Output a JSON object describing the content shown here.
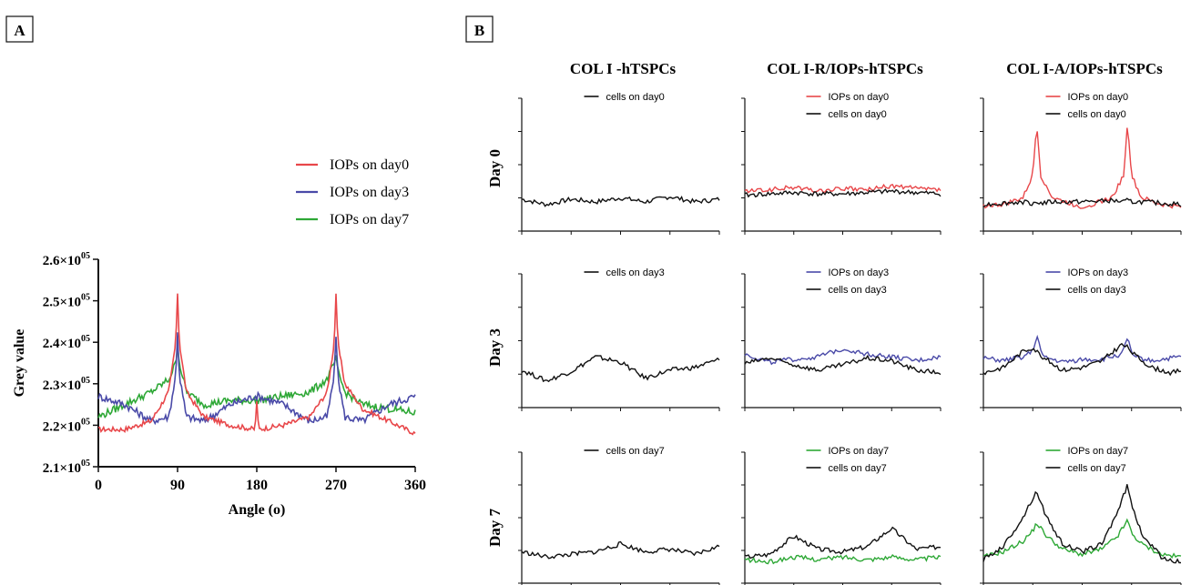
{
  "panel_a": {
    "letter": "A",
    "colors": {
      "day0": "#e8474a",
      "day3": "#4a4aa8",
      "day7": "#2ea836"
    }
  },
  "panel_b": {
    "letter": "B",
    "column_titles": [
      "COL I -hTSPCs",
      "COL I-R/IOPs-hTSPCs",
      "COL I-A/IOPs-hTSPCs"
    ],
    "row_titles": [
      "Day 0",
      "Day 3",
      "Day 7"
    ],
    "colors": {
      "cells": "#111111",
      "day0": "#e8474a",
      "day3": "#4a4aa8",
      "day7": "#2ea836"
    }
  },
  "chart_data": [
    {
      "type": "line",
      "panel": "A",
      "xlabel": "Angle (o)",
      "ylabel": "Grey value",
      "xlim": [
        0,
        360
      ],
      "ylim": [
        210000,
        260000
      ],
      "xticks": [
        "0",
        "90",
        "180",
        "270",
        "360"
      ],
      "yticks": [
        {
          "mant": "2.1",
          "exp": "05"
        },
        {
          "mant": "2.2",
          "exp": "05"
        },
        {
          "mant": "2.3",
          "exp": "05"
        },
        {
          "mant": "2.4",
          "exp": "05"
        },
        {
          "mant": "2.5",
          "exp": "05"
        },
        {
          "mant": "2.6",
          "exp": "05"
        }
      ],
      "legend": [
        "IOPs on day0",
        "IOPs on day3",
        "IOPs on day7"
      ],
      "legend_position": "top-right",
      "x": [
        0,
        30,
        60,
        80,
        88,
        90,
        92,
        100,
        120,
        150,
        178,
        180,
        182,
        210,
        240,
        260,
        268,
        270,
        272,
        280,
        300,
        330,
        360
      ],
      "series": [
        {
          "name": "IOPs on day0",
          "values": [
            219000,
            219000,
            221000,
            228000,
            240000,
            252000,
            240000,
            228000,
            222000,
            220000,
            219000,
            226000,
            219000,
            220000,
            222000,
            228000,
            240000,
            252000,
            240000,
            230000,
            224000,
            221000,
            218000
          ]
        },
        {
          "name": "IOPs on day3",
          "values": [
            227000,
            225000,
            221000,
            222000,
            232000,
            243000,
            232000,
            222000,
            221000,
            225000,
            227000,
            227000,
            227000,
            225000,
            221000,
            222000,
            232000,
            242000,
            232000,
            222000,
            221000,
            225000,
            227000
          ]
        },
        {
          "name": "IOPs on day7",
          "values": [
            222000,
            225000,
            228000,
            231000,
            235000,
            240000,
            235000,
            228000,
            225000,
            226000,
            226000,
            226000,
            226000,
            227000,
            228000,
            231000,
            235000,
            236000,
            233000,
            228000,
            225000,
            224000,
            223000
          ]
        }
      ]
    },
    {
      "type": "line",
      "panel": "B",
      "grid": [
        [
          {
            "legend": [
              "cells on day0"
            ],
            "ylim": [
              0,
              1
            ],
            "x": [
              0,
              0.125,
              0.25,
              0.375,
              0.5,
              0.625,
              0.75,
              0.875,
              1
            ],
            "series": [
              {
                "name": "cells on day0",
                "values": [
                  0.24,
                  0.2,
                  0.24,
                  0.22,
                  0.25,
                  0.22,
                  0.26,
                  0.22,
                  0.24
                ]
              }
            ]
          },
          {
            "legend": [
              "IOPs on day0",
              "cells on day0"
            ],
            "ylim": [
              0,
              1
            ],
            "x": [
              0,
              0.125,
              0.25,
              0.375,
              0.5,
              0.625,
              0.75,
              0.875,
              1
            ],
            "series": [
              {
                "name": "IOPs on day0",
                "values": [
                  0.3,
                  0.31,
                  0.33,
                  0.3,
                  0.32,
                  0.31,
                  0.34,
                  0.32,
                  0.31
                ]
              },
              {
                "name": "cells on day0",
                "values": [
                  0.27,
                  0.28,
                  0.29,
                  0.28,
                  0.28,
                  0.29,
                  0.3,
                  0.29,
                  0.28
                ]
              }
            ]
          },
          {
            "legend": [
              "IOPs on day0",
              "cells on day0"
            ],
            "ylim": [
              0,
              1
            ],
            "x": [
              0,
              0.1,
              0.2,
              0.25,
              0.27,
              0.29,
              0.35,
              0.5,
              0.65,
              0.71,
              0.73,
              0.75,
              0.8,
              0.9,
              1
            ],
            "series": [
              {
                "name": "IOPs on day0",
                "values": [
                  0.19,
                  0.2,
                  0.25,
                  0.42,
                  0.82,
                  0.42,
                  0.25,
                  0.18,
                  0.25,
                  0.42,
                  0.82,
                  0.42,
                  0.25,
                  0.2,
                  0.18
                ]
              },
              {
                "name": "cells on day0",
                "values": [
                  0.2,
                  0.21,
                  0.22,
                  0.21,
                  0.22,
                  0.21,
                  0.22,
                  0.22,
                  0.23,
                  0.22,
                  0.23,
                  0.22,
                  0.22,
                  0.21,
                  0.2
                ]
              }
            ]
          }
        ],
        [
          {
            "legend": [
              "cells on day3"
            ],
            "ylim": [
              0,
              1
            ],
            "x": [
              0,
              0.125,
              0.25,
              0.375,
              0.5,
              0.625,
              0.75,
              0.875,
              1
            ],
            "series": [
              {
                "name": "cells on day3",
                "values": [
                  0.28,
                  0.2,
                  0.27,
                  0.38,
                  0.34,
                  0.22,
                  0.28,
                  0.3,
                  0.36
                ]
              }
            ]
          },
          {
            "legend": [
              "IOPs on day3",
              "cells on day3"
            ],
            "ylim": [
              0,
              1
            ],
            "x": [
              0,
              0.125,
              0.25,
              0.375,
              0.5,
              0.625,
              0.75,
              0.875,
              1
            ],
            "series": [
              {
                "name": "IOPs on day3",
                "values": [
                  0.4,
                  0.34,
                  0.36,
                  0.38,
                  0.44,
                  0.4,
                  0.38,
                  0.35,
                  0.38
                ]
              },
              {
                "name": "cells on day3",
                "values": [
                  0.33,
                  0.37,
                  0.32,
                  0.28,
                  0.32,
                  0.37,
                  0.35,
                  0.28,
                  0.26
                ]
              }
            ]
          },
          {
            "legend": [
              "IOPs on day3",
              "cells on day3"
            ],
            "ylim": [
              0,
              1
            ],
            "x": [
              0,
              0.1,
              0.2,
              0.25,
              0.27,
              0.3,
              0.4,
              0.5,
              0.6,
              0.7,
              0.73,
              0.76,
              0.85,
              0.95,
              1
            ],
            "series": [
              {
                "name": "IOPs on day3",
                "values": [
                  0.37,
                  0.35,
                  0.38,
                  0.42,
                  0.54,
                  0.38,
                  0.34,
                  0.36,
                  0.36,
                  0.4,
                  0.51,
                  0.38,
                  0.35,
                  0.37,
                  0.38
                ]
              },
              {
                "name": "cells on day3",
                "values": [
                  0.26,
                  0.3,
                  0.42,
                  0.45,
                  0.42,
                  0.38,
                  0.28,
                  0.3,
                  0.35,
                  0.47,
                  0.45,
                  0.4,
                  0.3,
                  0.26,
                  0.28
                ]
              }
            ]
          }
        ],
        [
          {
            "legend": [
              "cells on day7"
            ],
            "ylim": [
              0,
              1
            ],
            "x": [
              0,
              0.125,
              0.25,
              0.375,
              0.5,
              0.625,
              0.75,
              0.875,
              1
            ],
            "series": [
              {
                "name": "cells on day7",
                "values": [
                  0.24,
                  0.2,
                  0.22,
                  0.24,
                  0.3,
                  0.24,
                  0.26,
                  0.22,
                  0.28
                ]
              }
            ]
          },
          {
            "legend": [
              "IOPs on day7",
              "cells on day7"
            ],
            "ylim": [
              0,
              1
            ],
            "x": [
              0,
              0.125,
              0.25,
              0.375,
              0.5,
              0.625,
              0.75,
              0.875,
              1
            ],
            "series": [
              {
                "name": "IOPs on day7",
                "values": [
                  0.18,
                  0.16,
                  0.2,
                  0.18,
                  0.2,
                  0.18,
                  0.2,
                  0.18,
                  0.2
                ]
              },
              {
                "name": "cells on day7",
                "values": [
                  0.2,
                  0.22,
                  0.36,
                  0.26,
                  0.24,
                  0.28,
                  0.42,
                  0.26,
                  0.28
                ]
              }
            ]
          },
          {
            "legend": [
              "IOPs on day7",
              "cells on day7"
            ],
            "ylim": [
              0,
              1
            ],
            "x": [
              0,
              0.1,
              0.2,
              0.25,
              0.27,
              0.32,
              0.4,
              0.5,
              0.6,
              0.68,
              0.73,
              0.75,
              0.8,
              0.9,
              1
            ],
            "series": [
              {
                "name": "IOPs on day7",
                "values": [
                  0.2,
                  0.24,
                  0.32,
                  0.4,
                  0.46,
                  0.36,
                  0.26,
                  0.22,
                  0.26,
                  0.36,
                  0.48,
                  0.38,
                  0.3,
                  0.22,
                  0.2
                ]
              },
              {
                "name": "cells on day7",
                "values": [
                  0.18,
                  0.28,
                  0.5,
                  0.65,
                  0.7,
                  0.5,
                  0.3,
                  0.24,
                  0.3,
                  0.55,
                  0.75,
                  0.6,
                  0.38,
                  0.2,
                  0.16
                ]
              }
            ]
          }
        ]
      ]
    }
  ]
}
